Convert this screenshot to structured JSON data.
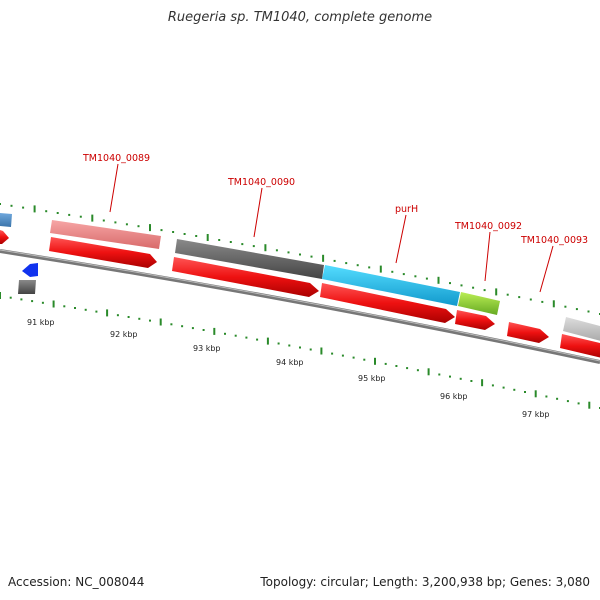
{
  "title": "Ruegeria sp. TM1040, complete genome",
  "footer": {
    "accession": "Accession: NC_008044",
    "info": "Topology: circular; Length: 3,200,938 bp; Genes: 3,080"
  },
  "kbp_labels": [
    "91 kbp",
    "92 kbp",
    "93 kbp",
    "94 kbp",
    "95 kbp",
    "96 kbp",
    "97 kbp"
  ],
  "gene_labels": [
    "TM1040_0089",
    "TM1040_0090",
    "purH",
    "TM1040_0092",
    "TM1040_0093"
  ],
  "colors": {
    "cds": "#ee1111",
    "backbone": "#888888",
    "tick": "#2a8a2a",
    "label": "#cc0000",
    "feature_pink": "#f08a8a",
    "feature_darkgray": "#666666",
    "feature_cyan": "#22bbee",
    "feature_lime": "#99dd33",
    "feature_lightgray": "#c8c8c8",
    "feature_steelblue": "#4a8cc8",
    "feature_blue": "#1133ee"
  }
}
